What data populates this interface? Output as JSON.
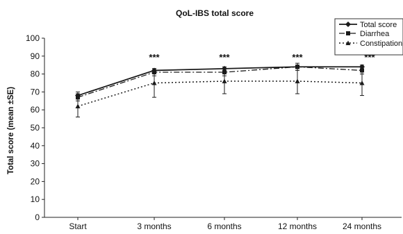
{
  "chart_data": {
    "type": "line",
    "title": "QoL-IBS total score",
    "ylabel": "Total score (mean ±SE)",
    "xlabel": "",
    "categories": [
      "Start",
      "3 months",
      "6 months",
      "12 months",
      "24 months"
    ],
    "ylim": [
      0,
      100
    ],
    "yticks": [
      0,
      10,
      20,
      30,
      40,
      50,
      60,
      70,
      80,
      90,
      100
    ],
    "grid": false,
    "legend_position": "top-right",
    "series": [
      {
        "name": "Total score",
        "values": [
          68,
          82,
          83,
          84,
          84
        ],
        "error": [
          2,
          1,
          1,
          1,
          1
        ],
        "style": "solid",
        "marker": "diamond",
        "color": "#1a1a1a"
      },
      {
        "name": "Diarrhea",
        "values": [
          67,
          81,
          81,
          84,
          82
        ],
        "error": [
          2,
          2,
          2,
          2,
          2
        ],
        "style": "dashdot",
        "marker": "square",
        "color": "#1a1a1a"
      },
      {
        "name": "Constipation",
        "values": [
          62,
          75,
          76,
          76,
          75
        ],
        "error": [
          6,
          8,
          7,
          7,
          7
        ],
        "style": "dotted",
        "marker": "triangle",
        "color": "#1a1a1a"
      }
    ],
    "annotations": [
      "***",
      "***",
      "***",
      "***"
    ],
    "annotation_categories": [
      "3 months",
      "6 months",
      "12 months",
      "24 months"
    ]
  }
}
